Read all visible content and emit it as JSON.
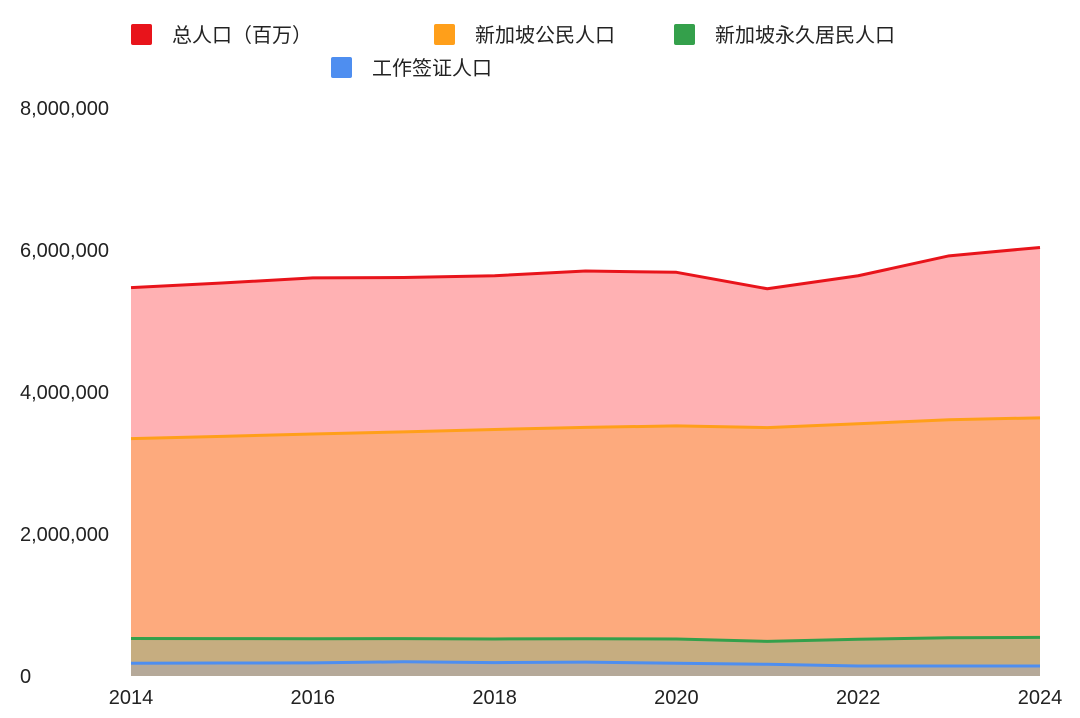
{
  "chart_data": {
    "type": "area",
    "title": "",
    "xlabel": "",
    "ylabel": "",
    "x": [
      2014,
      2015,
      2016,
      2017,
      2018,
      2019,
      2020,
      2021,
      2022,
      2023,
      2024
    ],
    "xlim": [
      2014,
      2024
    ],
    "ylim": [
      0,
      8000000
    ],
    "x_ticks": [
      "2014",
      "2016",
      "2018",
      "2020",
      "2022",
      "2024"
    ],
    "y_ticks": [
      "8,000,000",
      "6,000,000",
      "4,000,000",
      "2,000,000",
      "0"
    ],
    "grid": false,
    "legend": "top",
    "series": [
      {
        "name": "总人口（百万）",
        "line_color": "#e8141b",
        "fill_color": "#ffb1b3",
        "values": [
          5470000,
          5535000,
          5607000,
          5612000,
          5638000,
          5704000,
          5686000,
          5454000,
          5637000,
          5918000,
          6036000
        ]
      },
      {
        "name": "新加坡公民人口",
        "line_color": "#ff9f1a",
        "fill_color": "#fdaa7d",
        "values": [
          3343000,
          3375000,
          3409000,
          3439000,
          3472000,
          3501000,
          3523000,
          3498000,
          3553000,
          3610000,
          3636000
        ]
      },
      {
        "name": "新加坡永久居民人口",
        "line_color": "#34a04b",
        "fill_color": "#c6ad80",
        "values": [
          528000,
          527000,
          524000,
          527000,
          522000,
          525000,
          521000,
          488000,
          518000,
          538000,
          544000
        ]
      },
      {
        "name": "工作签证人口",
        "line_color": "#4e8ef0",
        "fill_color": "#b5a999",
        "values": [
          180000,
          183000,
          185000,
          200000,
          189000,
          195000,
          180000,
          165000,
          140000,
          140000,
          140000
        ]
      }
    ]
  }
}
